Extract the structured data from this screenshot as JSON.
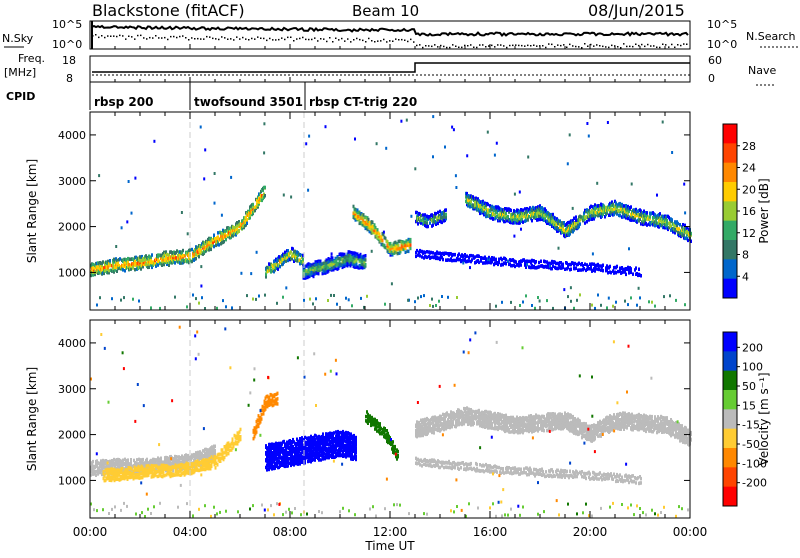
{
  "header": {
    "station": "Blackstone (fitACF)",
    "beam": "Beam 10",
    "date": "08/Jun/2015"
  },
  "top_panels": {
    "nsky_label": "N.Sky",
    "nsky_ticks": [
      "10^5",
      "10^0"
    ],
    "nsearch_label": "N.Search",
    "nsearch_ticks": [
      "10^5",
      "10^0"
    ],
    "freq_label": "Freq.",
    "freq_unit": "[MHz]",
    "freq_ticks": [
      "18",
      "8"
    ],
    "nave_label": "Nave",
    "nave_ticks": [
      "60",
      "0"
    ],
    "cpid_label": "CPID",
    "cpid_segments": [
      {
        "label": "rbsp 200",
        "start_h": 0,
        "end_h": 4
      },
      {
        "label": "twofsound 3501",
        "start_h": 4,
        "end_h": 8.6
      },
      {
        "label": "rbsp CT-trig 220",
        "start_h": 8.6,
        "end_h": 24
      }
    ]
  },
  "axes": {
    "ylabel": "Slant Range [km]",
    "xlabel": "Time UT",
    "x_ticks": [
      "00:00",
      "04:00",
      "08:00",
      "12:00",
      "16:00",
      "20:00",
      "00:00"
    ],
    "y_ticks": [
      "1000",
      "2000",
      "3000",
      "4000"
    ]
  },
  "colorbars": {
    "power": {
      "label": "Power [dB]",
      "ticks": [
        "28",
        "24",
        "20",
        "16",
        "12",
        "8",
        "4"
      ],
      "colors": [
        "#ff0000",
        "#ff4400",
        "#ff8800",
        "#ffcc00",
        "#99cc33",
        "#33aa66",
        "#337766",
        "#0066cc",
        "#0000ff"
      ]
    },
    "velocity": {
      "label": "Velocity [m s⁻¹]",
      "ticks": [
        "200",
        "100",
        "50",
        "15",
        "-15",
        "-50",
        "-100",
        "-200"
      ],
      "colors": [
        "#0000ff",
        "#0044cc",
        "#117700",
        "#66cc33",
        "#bbbbbb",
        "#ffcc33",
        "#ff8800",
        "#ff4400",
        "#ff0000"
      ]
    }
  },
  "chart_data": [
    {
      "type": "heatmap",
      "name": "power",
      "x_range_hours": [
        0,
        24
      ],
      "y_range_km": [
        180,
        4500
      ],
      "bands": [
        {
          "t": [
            0,
            1,
            2,
            3,
            4,
            5,
            6,
            7
          ],
          "r": [
            1050,
            1150,
            1200,
            1300,
            1350,
            1700,
            2000,
            2800
          ],
          "w": 220,
          "level": 24
        },
        {
          "t": [
            7,
            7.5,
            8,
            8.5
          ],
          "r": [
            1000,
            1200,
            1400,
            1250
          ],
          "w": 200,
          "level": 20
        },
        {
          "t": [
            8.5,
            9.5,
            10.3,
            11
          ],
          "r": [
            1000,
            1150,
            1300,
            1200
          ],
          "w": 250,
          "level": 16
        },
        {
          "t": [
            10.5,
            11.2,
            12,
            12.8
          ],
          "r": [
            2300,
            2000,
            1500,
            1600
          ],
          "w": 220,
          "level": 24
        },
        {
          "t": [
            13,
            13.5,
            14.2
          ],
          "r": [
            2200,
            2100,
            2250
          ],
          "w": 200,
          "level": 16
        },
        {
          "t": [
            15,
            16,
            17,
            18,
            19,
            20,
            21,
            22,
            23,
            24
          ],
          "r": [
            2600,
            2300,
            2200,
            2300,
            1900,
            2300,
            2400,
            2200,
            2100,
            1800
          ],
          "w": 240,
          "level": 18
        },
        {
          "t": [
            13,
            15,
            17,
            20,
            22
          ],
          "r": [
            1400,
            1300,
            1200,
            1100,
            1000
          ],
          "w": 100,
          "level": 8
        }
      ]
    },
    {
      "type": "heatmap",
      "name": "velocity",
      "x_range_hours": [
        0,
        24
      ],
      "y_range_km": [
        180,
        4500
      ],
      "bands": [
        {
          "t": [
            0,
            1,
            2,
            3,
            4,
            5
          ],
          "r": [
            1250,
            1300,
            1300,
            1350,
            1400,
            1600
          ],
          "w": 260,
          "v": -15
        },
        {
          "t": [
            0.5,
            1.5,
            2.5,
            3.5,
            5,
            6
          ],
          "r": [
            1100,
            1150,
            1200,
            1200,
            1400,
            2000
          ],
          "w": 200,
          "v": -50
        },
        {
          "t": [
            6.5,
            7,
            7.5
          ],
          "r": [
            2000,
            2700,
            2800
          ],
          "w": 200,
          "v": -100
        },
        {
          "t": [
            7,
            8,
            9,
            10,
            10.6
          ],
          "r": [
            1500,
            1600,
            1700,
            1800,
            1700
          ],
          "w": 500,
          "v": 200
        },
        {
          "t": [
            11,
            11.8,
            12.3
          ],
          "r": [
            2400,
            2000,
            1500
          ],
          "w": 180,
          "v": 50
        },
        {
          "t": [
            13,
            15,
            17,
            19,
            20,
            21,
            23,
            24
          ],
          "r": [
            2100,
            2400,
            2200,
            2300,
            2000,
            2300,
            2200,
            1900
          ],
          "w": 300,
          "v": -15
        },
        {
          "t": [
            13,
            15,
            17,
            20,
            22
          ],
          "r": [
            1400,
            1300,
            1200,
            1100,
            1000
          ],
          "w": 100,
          "v": -15
        }
      ]
    }
  ]
}
